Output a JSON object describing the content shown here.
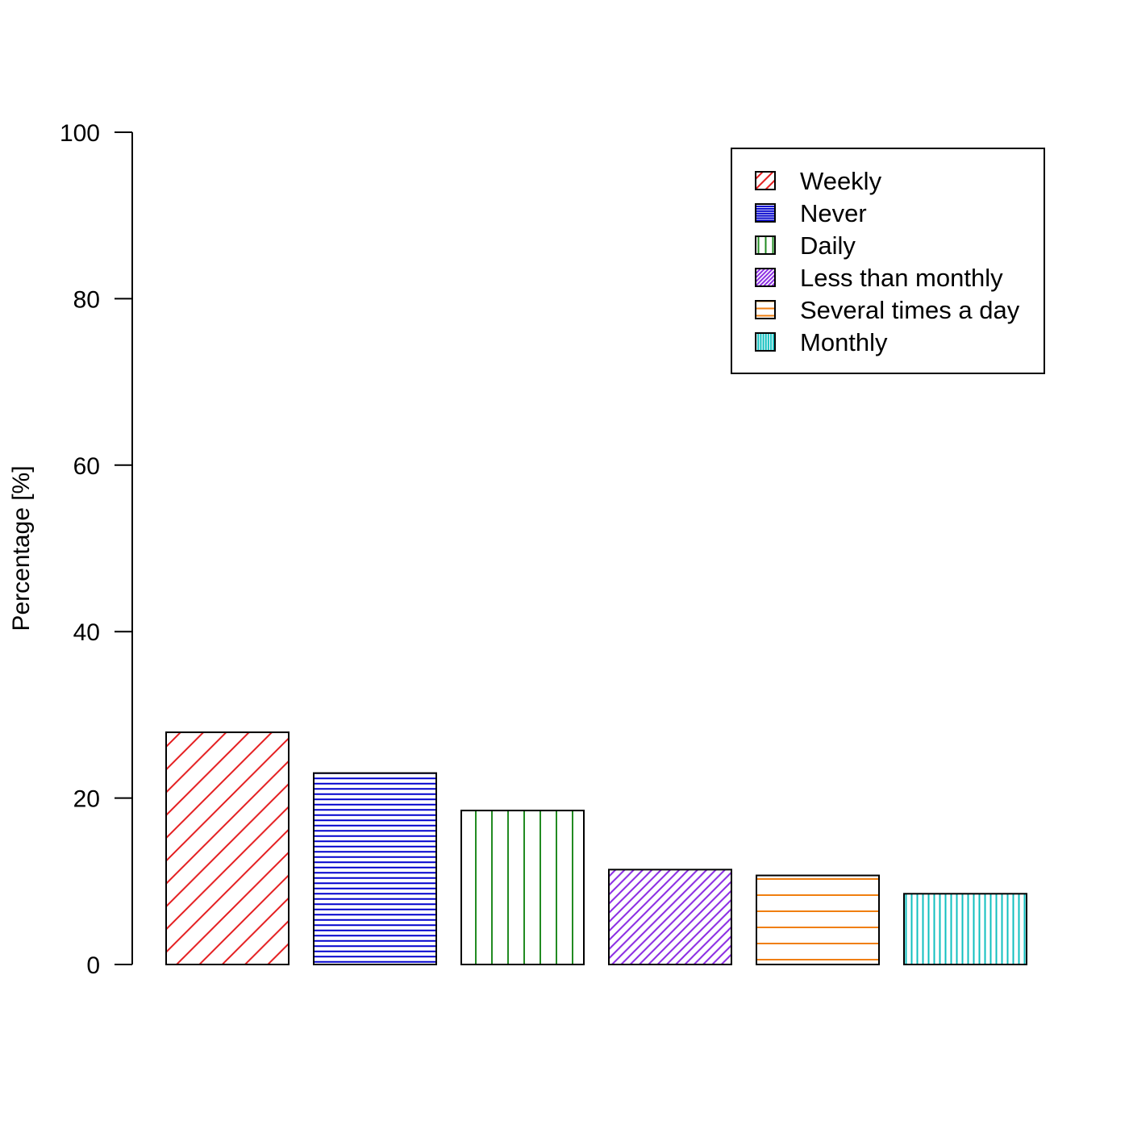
{
  "chart_data": {
    "type": "bar",
    "title": "",
    "xlabel": "",
    "ylabel": "Percentage [%]",
    "ylim": [
      0,
      100
    ],
    "yticks": [
      0,
      20,
      40,
      60,
      80,
      100
    ],
    "grid": false,
    "legend_position": "top-right",
    "categories": [
      "Weekly",
      "Never",
      "Daily",
      "Less than monthly",
      "Several times a day",
      "Monthly"
    ],
    "values": [
      27.9,
      23.0,
      18.5,
      11.4,
      10.7,
      8.5
    ],
    "colors": [
      "#e41a1c",
      "#0000cd",
      "#228b22",
      "#8a2be2",
      "#f07f10",
      "#10bfbf"
    ],
    "patterns": [
      "diagonal-sparse",
      "horizontal-dense",
      "vertical-sparse",
      "diagonal-dense",
      "horizontal-sparse",
      "vertical-dense"
    ]
  }
}
